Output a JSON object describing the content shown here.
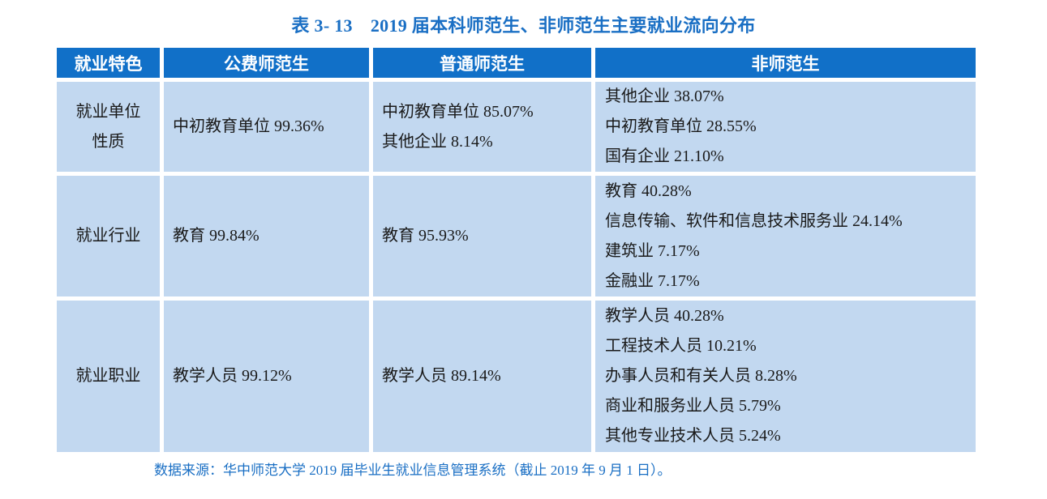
{
  "title": {
    "number": "表 3- 13",
    "text": "2019 届本科师范生、非师范生主要就业流向分布"
  },
  "table": {
    "headers": [
      "就业特色",
      "公费师范生",
      "普通师范生",
      "非师范生"
    ],
    "rows": [
      {
        "label": [
          "就业单位",
          "性质"
        ],
        "public_funded": [
          "中初教育单位 99.36%"
        ],
        "regular_normal": [
          "中初教育单位 85.07%",
          "其他企业 8.14%"
        ],
        "non_normal": [
          "其他企业 38.07%",
          "中初教育单位 28.55%",
          "国有企业 21.10%"
        ]
      },
      {
        "label": [
          "就业行业"
        ],
        "public_funded": [
          "教育 99.84%"
        ],
        "regular_normal": [
          "教育 95.93%"
        ],
        "non_normal": [
          "教育 40.28%",
          "信息传输、软件和信息技术服务业 24.14%",
          "建筑业 7.17%",
          "金融业 7.17%"
        ]
      },
      {
        "label": [
          "就业职业"
        ],
        "public_funded": [
          "教学人员 99.12%"
        ],
        "regular_normal": [
          "教学人员 89.14%"
        ],
        "non_normal": [
          "教学人员 40.28%",
          "工程技术人员 10.21%",
          "办事人员和有关人员 8.28%",
          "商业和服务业人员 5.79%",
          "其他专业技术人员 5.24%"
        ]
      }
    ]
  },
  "footer": "数据来源：华中师范大学 2019 届毕业生就业信息管理系统（截止 2019 年 9 月 1 日）。",
  "colors": {
    "header_bg": "#1170c8",
    "cell_bg": "#c2d8f0",
    "title": "#1a6fc4"
  }
}
